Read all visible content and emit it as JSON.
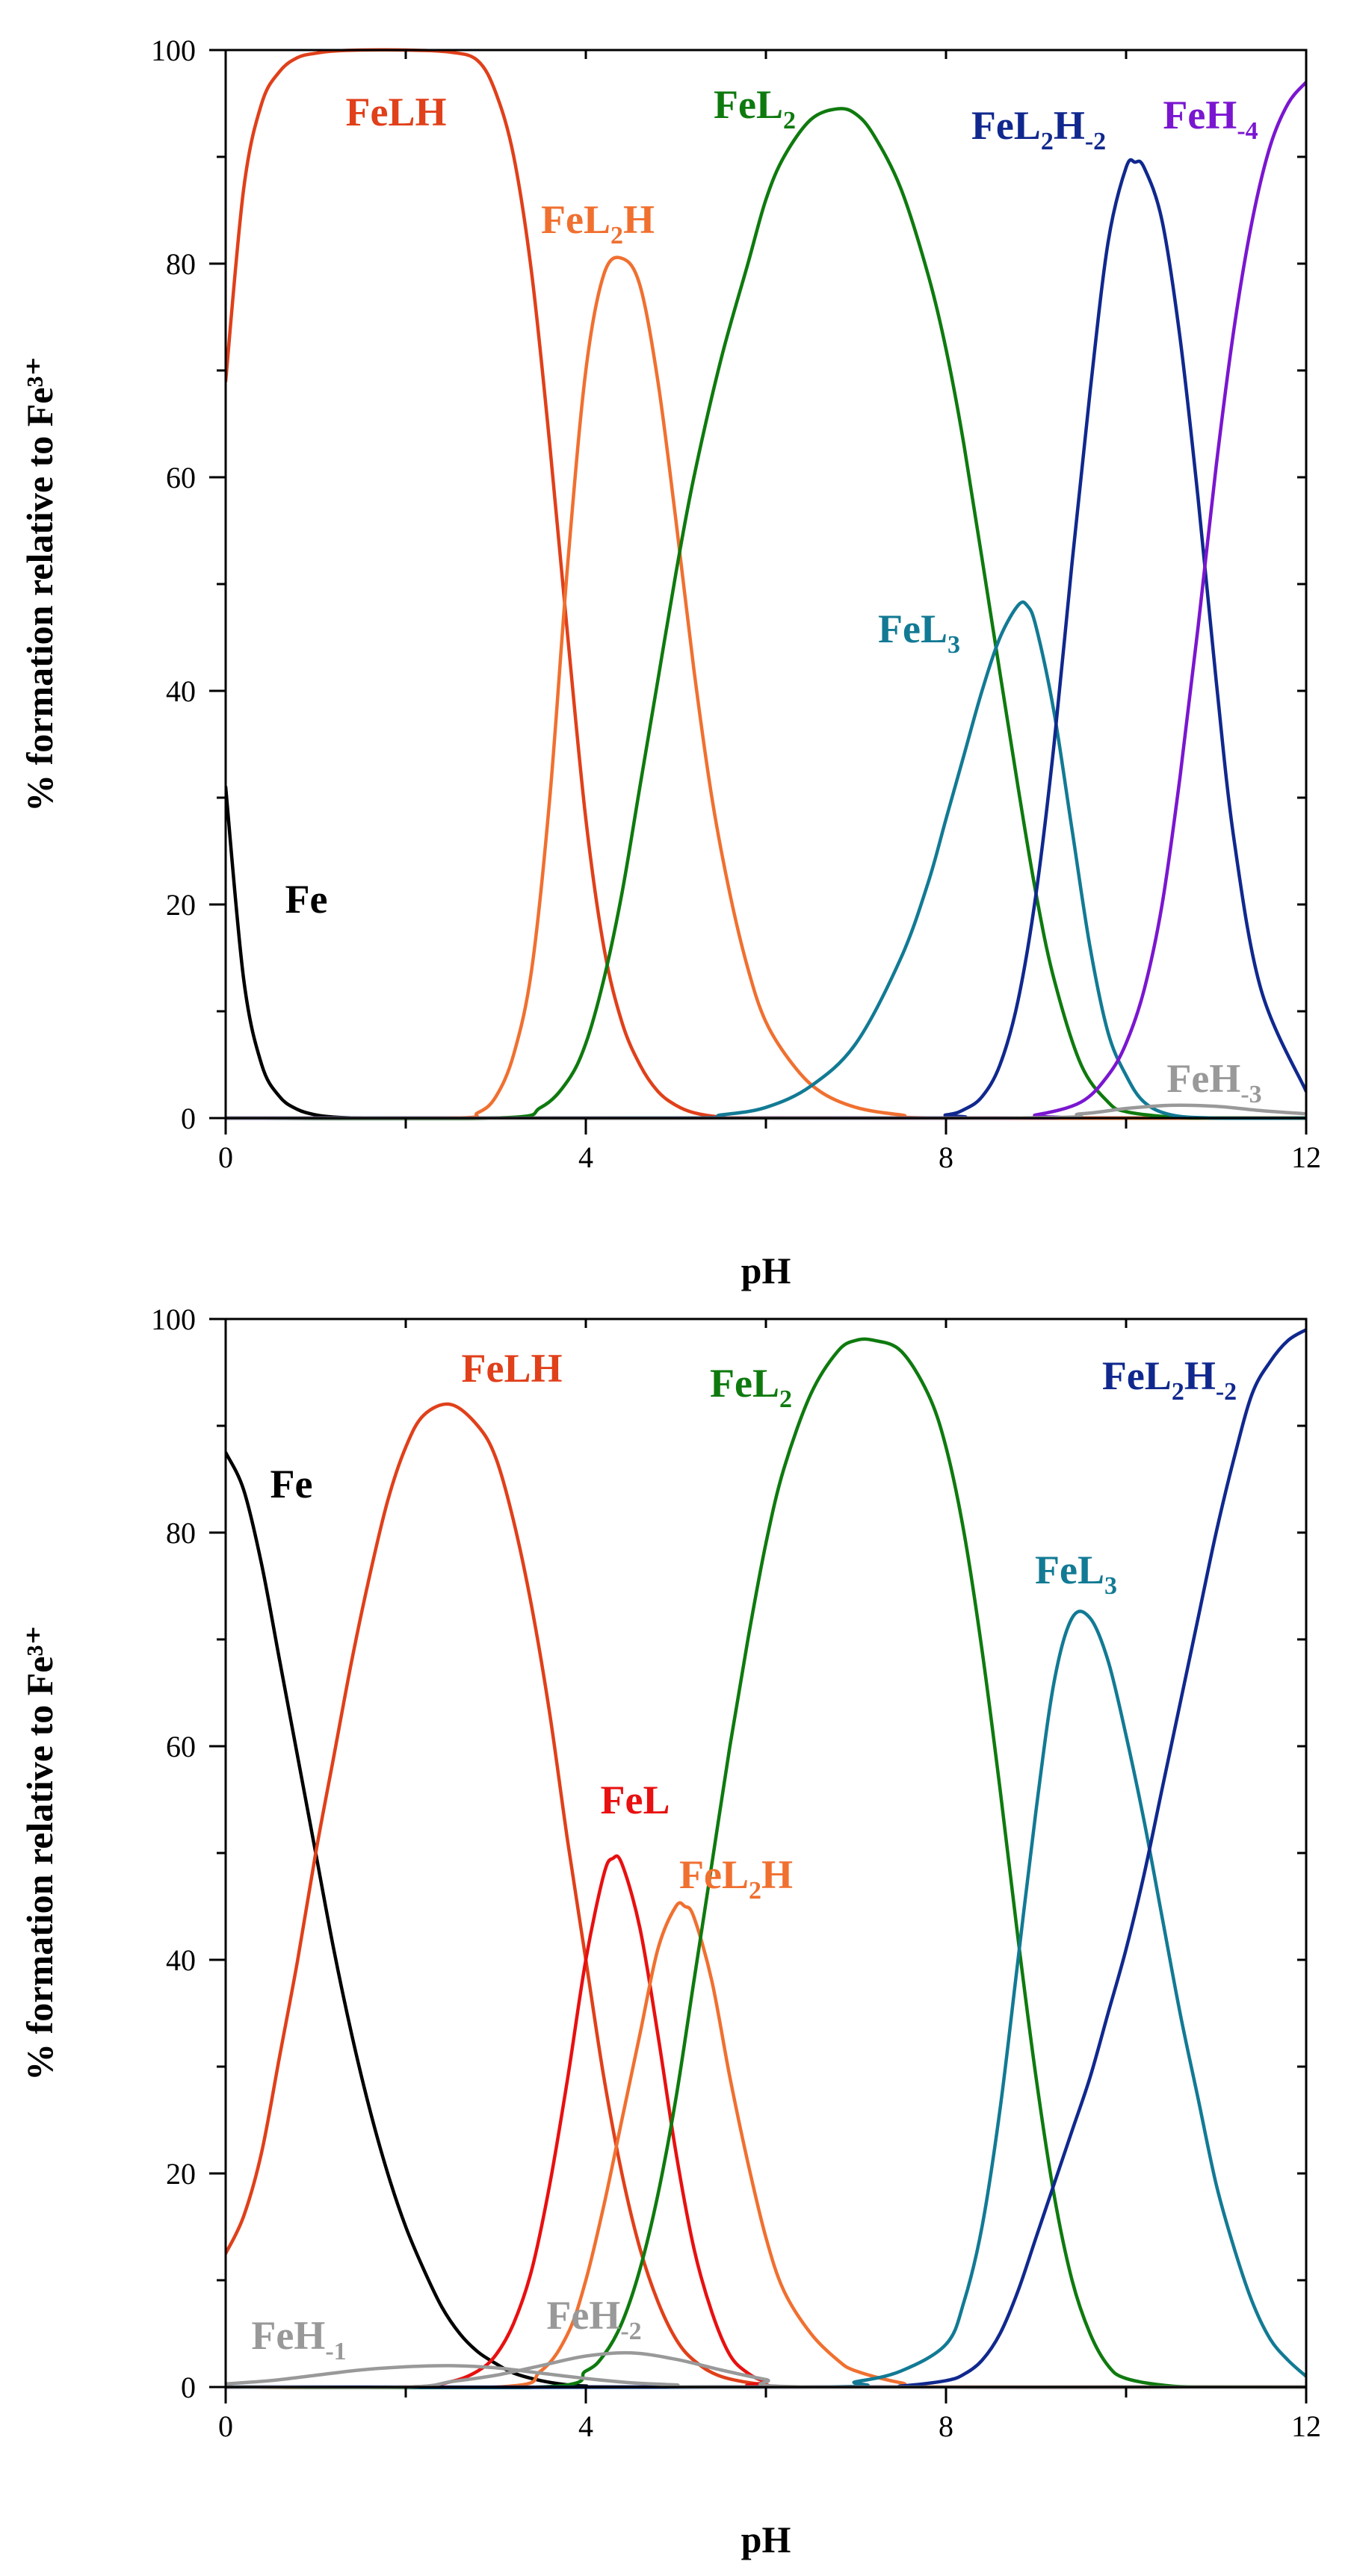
{
  "chart_data": [
    {
      "type": "line",
      "title": "",
      "xlabel": "pH",
      "ylabel": "% formation relative to Fe³⁺",
      "xlim": [
        0,
        12
      ],
      "ylim": [
        0,
        100
      ],
      "xticks": [
        0,
        4,
        8,
        12
      ],
      "yticks": [
        0,
        20,
        40,
        60,
        80,
        100
      ],
      "grid": false,
      "series": [
        {
          "name": "Fe",
          "label": "Fe",
          "sub": "",
          "label_suffix": "",
          "color": "#000000",
          "x": [
            0,
            0.2,
            0.4,
            0.6,
            0.8,
            1.0,
            1.2,
            1.5,
            2.0,
            12
          ],
          "y": [
            31,
            13,
            5,
            2,
            0.8,
            0.3,
            0.1,
            0,
            0,
            0
          ]
        },
        {
          "name": "FeLH",
          "label": "FeLH",
          "sub": "",
          "label_suffix": "",
          "color": "#e0401a",
          "x": [
            0,
            0.2,
            0.4,
            0.6,
            0.8,
            1.0,
            1.2,
            1.5,
            2.0,
            2.5,
            2.8,
            3.0,
            3.2,
            3.4,
            3.6,
            3.8,
            4.0,
            4.2,
            4.4,
            4.6,
            4.8,
            5.0,
            5.2,
            5.5,
            6.0,
            12
          ],
          "y": [
            69,
            87,
            95,
            98,
            99.3,
            99.7,
            99.9,
            100,
            100,
            99.8,
            99,
            96,
            90,
            79,
            63,
            45,
            28,
            16,
            9,
            5,
            2.5,
            1.2,
            0.5,
            0.1,
            0,
            0
          ]
        },
        {
          "name": "FeL2H",
          "label": "FeL",
          "sub": "2",
          "label_suffix": "H",
          "color": "#f07030",
          "x": [
            0,
            2.5,
            2.8,
            3.0,
            3.2,
            3.4,
            3.6,
            3.8,
            4.0,
            4.2,
            4.4,
            4.6,
            4.8,
            5.0,
            5.2,
            5.4,
            5.6,
            5.8,
            6.0,
            6.3,
            6.6,
            7.0,
            7.5,
            8.0,
            12
          ],
          "y": [
            0,
            0,
            0.5,
            2,
            6,
            14,
            30,
            52,
            70,
            79,
            80.5,
            78,
            69,
            56,
            42,
            30,
            21,
            14,
            9,
            5,
            2.5,
            1,
            0.3,
            0,
            0
          ]
        },
        {
          "name": "FeL2",
          "label": "FeL",
          "sub": "2",
          "label_suffix": "",
          "color": "#0e7a0e",
          "x": [
            0,
            3.0,
            3.5,
            3.8,
            4.0,
            4.2,
            4.4,
            4.6,
            4.8,
            5.0,
            5.2,
            5.5,
            5.8,
            6.0,
            6.2,
            6.5,
            6.8,
            7.0,
            7.2,
            7.5,
            7.8,
            8.0,
            8.2,
            8.5,
            8.8,
            9.0,
            9.2,
            9.5,
            9.8,
            10.0,
            10.5,
            11.0,
            12
          ],
          "y": [
            0,
            0,
            1,
            3.5,
            7,
            13,
            21,
            31,
            41,
            51,
            60,
            71,
            80,
            86,
            90,
            93.5,
            94.5,
            94,
            92,
            87,
            79,
            72,
            63,
            47,
            31,
            21,
            13,
            5,
            1.5,
            0.6,
            0.1,
            0,
            0
          ]
        },
        {
          "name": "FeL3",
          "label": "FeL",
          "sub": "3",
          "label_suffix": "",
          "color": "#127a94",
          "x": [
            0,
            5.0,
            5.5,
            6.0,
            6.5,
            7.0,
            7.5,
            7.8,
            8.0,
            8.2,
            8.4,
            8.6,
            8.8,
            8.9,
            9.0,
            9.2,
            9.4,
            9.6,
            9.8,
            10.0,
            10.2,
            10.5,
            11.0,
            12
          ],
          "y": [
            0,
            0,
            0.3,
            1,
            3,
            7,
            15,
            22,
            28,
            34,
            40,
            45,
            48,
            48,
            46,
            38,
            27,
            16,
            8,
            4,
            1.5,
            0.3,
            0,
            0
          ]
        },
        {
          "name": "FeL2H-2",
          "label": "FeL",
          "sub": "2",
          "label_suffix": "H",
          "sub2": "-2",
          "color": "#10288e",
          "x": [
            0,
            7.5,
            8.0,
            8.2,
            8.4,
            8.6,
            8.8,
            9.0,
            9.2,
            9.4,
            9.6,
            9.8,
            10.0,
            10.1,
            10.2,
            10.4,
            10.6,
            10.8,
            11.0,
            11.2,
            11.5,
            12
          ],
          "y": [
            0,
            0,
            0.3,
            0.8,
            2,
            5,
            11,
            21,
            35,
            52,
            68,
            82,
            89,
            89.5,
            89,
            84,
            73,
            58,
            41,
            26,
            12,
            2.5
          ]
        },
        {
          "name": "FeH-4",
          "label": "FeH",
          "sub": "-4",
          "label_suffix": "",
          "color": "#7a16d0",
          "x": [
            0,
            8.5,
            9.0,
            9.5,
            9.8,
            10.0,
            10.2,
            10.4,
            10.6,
            10.8,
            11.0,
            11.2,
            11.4,
            11.6,
            11.8,
            12.0
          ],
          "y": [
            0,
            0,
            0.3,
            1.5,
            4,
            7,
            12,
            20,
            32,
            46,
            61,
            74,
            84,
            91,
            95,
            97
          ]
        },
        {
          "name": "FeH-3",
          "label": "FeH",
          "sub": "-3",
          "label_suffix": "",
          "color": "#999999",
          "x": [
            0,
            8.5,
            9.5,
            10.0,
            10.5,
            11.0,
            11.5,
            12.0
          ],
          "y": [
            0,
            0,
            0.4,
            0.9,
            1.2,
            1.1,
            0.7,
            0.4
          ]
        }
      ]
    },
    {
      "type": "line",
      "title": "",
      "xlabel": "pH",
      "ylabel": "% formation relative to Fe³⁺",
      "xlim": [
        0,
        12
      ],
      "ylim": [
        0,
        100
      ],
      "xticks": [
        0,
        4,
        8,
        12
      ],
      "yticks": [
        0,
        20,
        40,
        60,
        80,
        100
      ],
      "grid": false,
      "series": [
        {
          "name": "Fe",
          "label": "Fe",
          "sub": "",
          "label_suffix": "",
          "color": "#000000",
          "x": [
            0,
            0.2,
            0.4,
            0.6,
            0.8,
            1.0,
            1.2,
            1.4,
            1.6,
            1.8,
            2.0,
            2.2,
            2.4,
            2.6,
            2.8,
            3.0,
            3.2,
            3.5,
            3.8,
            4.0,
            4.5,
            12
          ],
          "y": [
            87.5,
            84,
            77,
            68,
            59,
            50,
            41,
            33,
            26,
            20,
            15,
            11,
            7.5,
            5,
            3.3,
            2.2,
            1.3,
            0.6,
            0.2,
            0.1,
            0,
            0
          ]
        },
        {
          "name": "FeLH",
          "label": "FeLH",
          "sub": "",
          "label_suffix": "",
          "color": "#e0401a",
          "x": [
            0,
            0.2,
            0.4,
            0.6,
            0.8,
            1.0,
            1.2,
            1.4,
            1.6,
            1.8,
            2.0,
            2.2,
            2.5,
            2.8,
            3.0,
            3.2,
            3.4,
            3.6,
            3.8,
            4.0,
            4.2,
            4.4,
            4.6,
            4.8,
            5.0,
            5.2,
            5.5,
            6.0,
            6.5,
            12
          ],
          "y": [
            12.5,
            16,
            22,
            31,
            40,
            50,
            59,
            68,
            76,
            83,
            88,
            91,
            92,
            90,
            87,
            81,
            73,
            63,
            51,
            40,
            29,
            20,
            13,
            8,
            4.5,
            2.5,
            1,
            0.2,
            0,
            0
          ]
        },
        {
          "name": "FeL",
          "label": "FeL",
          "sub": "",
          "label_suffix": "",
          "color": "#e81010",
          "x": [
            0,
            2.0,
            2.5,
            2.8,
            3.0,
            3.2,
            3.4,
            3.6,
            3.8,
            4.0,
            4.2,
            4.3,
            4.4,
            4.6,
            4.8,
            5.0,
            5.2,
            5.4,
            5.6,
            5.8,
            6.0,
            6.3,
            12
          ],
          "y": [
            0,
            0,
            0.5,
            1.5,
            3,
            6,
            11,
            19,
            29,
            40,
            48,
            49.5,
            49,
            43,
            33,
            22,
            13,
            7,
            3,
            1.3,
            0.5,
            0,
            0
          ]
        },
        {
          "name": "FeL2H",
          "label": "FeL",
          "sub": "2",
          "label_suffix": "H",
          "color": "#f07030",
          "x": [
            0,
            3.0,
            3.5,
            3.8,
            4.0,
            4.2,
            4.4,
            4.6,
            4.8,
            5.0,
            5.1,
            5.2,
            5.4,
            5.6,
            5.8,
            6.0,
            6.2,
            6.5,
            6.8,
            7.0,
            7.5,
            8.0,
            12
          ],
          "y": [
            0,
            0,
            1.5,
            5,
            10,
            17,
            25,
            33,
            41,
            45,
            45,
            44,
            38,
            29,
            21,
            14,
            9,
            5,
            2.5,
            1.5,
            0.4,
            0,
            0
          ]
        },
        {
          "name": "FeL2",
          "label": "FeL",
          "sub": "2",
          "label_suffix": "",
          "color": "#0e7a0e",
          "x": [
            0,
            3.5,
            4.0,
            4.2,
            4.4,
            4.6,
            4.8,
            5.0,
            5.2,
            5.4,
            5.6,
            5.8,
            6.0,
            6.2,
            6.5,
            6.8,
            7.0,
            7.2,
            7.5,
            7.8,
            8.0,
            8.2,
            8.4,
            8.6,
            8.8,
            9.0,
            9.2,
            9.4,
            9.6,
            9.8,
            10.0,
            10.5,
            11.0,
            12
          ],
          "y": [
            0,
            0,
            1.5,
            3,
            6,
            11,
            18,
            27,
            38,
            49,
            60,
            70,
            79,
            86,
            93,
            97,
            98,
            98,
            97,
            93,
            88,
            80,
            69,
            56,
            42,
            29,
            18,
            10,
            5,
            2,
            0.8,
            0.1,
            0,
            0
          ]
        },
        {
          "name": "FeL3",
          "label": "FeL",
          "sub": "3",
          "label_suffix": "",
          "color": "#127a94",
          "x": [
            0,
            6.5,
            7.0,
            7.5,
            8.0,
            8.2,
            8.4,
            8.6,
            8.8,
            9.0,
            9.2,
            9.4,
            9.6,
            9.8,
            10.0,
            10.2,
            10.4,
            10.6,
            10.8,
            11.0,
            11.2,
            11.4,
            11.6,
            11.8,
            12.0
          ],
          "y": [
            0,
            0,
            0.5,
            1.5,
            4,
            8,
            15,
            26,
            40,
            54,
            66,
            72,
            72,
            68,
            61,
            53,
            44,
            35,
            27,
            19,
            13,
            8,
            4.5,
            2.5,
            1
          ]
        },
        {
          "name": "FeL2H-2",
          "label": "FeL",
          "sub": "2",
          "label_suffix": "H",
          "sub2": "-2",
          "color": "#10288e",
          "x": [
            0,
            7.0,
            7.5,
            8.0,
            8.2,
            8.4,
            8.6,
            8.8,
            9.0,
            9.2,
            9.4,
            9.6,
            9.8,
            10.0,
            10.2,
            10.4,
            10.6,
            10.8,
            11.0,
            11.2,
            11.4,
            11.6,
            11.8,
            12.0
          ],
          "y": [
            0,
            0,
            0.1,
            0.6,
            1.2,
            2.5,
            5,
            9,
            14,
            19,
            24,
            29,
            35,
            41,
            48,
            56,
            64,
            72,
            80,
            87,
            93,
            96,
            98,
            99
          ]
        },
        {
          "name": "FeH-1",
          "label": "FeH",
          "sub": "-1",
          "label_suffix": "",
          "color": "#999999",
          "x": [
            0,
            0.5,
            1.0,
            1.5,
            2.0,
            2.5,
            3.0,
            3.5,
            4.0,
            4.5,
            5.0,
            5.5,
            12
          ],
          "y": [
            0.3,
            0.6,
            1.1,
            1.6,
            1.9,
            2.0,
            1.8,
            1.3,
            0.8,
            0.4,
            0.2,
            0,
            0
          ]
        },
        {
          "name": "FeH-2",
          "label": "FeH",
          "sub": "-2",
          "label_suffix": "",
          "color": "#999999",
          "x": [
            0,
            2.0,
            2.5,
            3.0,
            3.5,
            4.0,
            4.5,
            5.0,
            5.5,
            6.0,
            6.5,
            12
          ],
          "y": [
            0,
            0,
            0.5,
            1.1,
            2.0,
            2.9,
            3.2,
            2.6,
            1.6,
            0.7,
            0,
            0
          ]
        }
      ]
    }
  ],
  "annotations": {
    "top": [
      {
        "series": "FeLH"
      },
      {
        "series": "FeL2H"
      },
      {
        "series": "FeL2"
      },
      {
        "series": "FeL2H-2"
      },
      {
        "series": "FeH-4"
      },
      {
        "series": "FeL3"
      },
      {
        "series": "Fe"
      },
      {
        "series": "FeH-3"
      }
    ],
    "bottom": [
      {
        "series": "FeLH"
      },
      {
        "series": "FeL2"
      },
      {
        "series": "FeL2H-2"
      },
      {
        "series": "Fe"
      },
      {
        "series": "FeL3"
      },
      {
        "series": "FeL"
      },
      {
        "series": "FeL2H"
      },
      {
        "series": "FeH-1"
      },
      {
        "series": "FeH-2"
      }
    ]
  }
}
